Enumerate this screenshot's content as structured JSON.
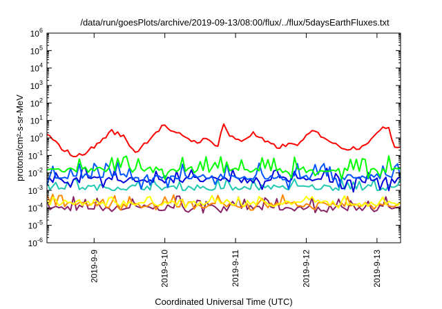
{
  "chart_data": {
    "type": "line",
    "title": "/data/run/goesPlots/archive/2019-09-13/08:00/flux/../flux/5daysEarthFluxes.txt",
    "xlabel": "Coordinated Universal Time (UTC)",
    "ylabel": "protons/cm²-s-sr-MeV",
    "yscale": "log",
    "ylim": [
      1e-06,
      1000000.0
    ],
    "y_ticks": [
      {
        "value": 1e-06,
        "base": "10",
        "exp": "-6"
      },
      {
        "value": 1e-05,
        "base": "10",
        "exp": "-5"
      },
      {
        "value": 0.0001,
        "base": "10",
        "exp": "-4"
      },
      {
        "value": 0.001,
        "base": "10",
        "exp": "-3"
      },
      {
        "value": 0.01,
        "base": "10",
        "exp": "-2"
      },
      {
        "value": 0.1,
        "base": "10",
        "exp": "-1"
      },
      {
        "value": 1,
        "base": "10",
        "exp": "0"
      },
      {
        "value": 10,
        "base": "10",
        "exp": "1"
      },
      {
        "value": 100,
        "base": "10",
        "exp": "2"
      },
      {
        "value": 1000,
        "base": "10",
        "exp": "3"
      },
      {
        "value": 10000,
        "base": "10",
        "exp": "4"
      },
      {
        "value": 100000,
        "base": "10",
        "exp": "5"
      },
      {
        "value": 1000000,
        "base": "10",
        "exp": "6"
      }
    ],
    "xlim": [
      "2019-09-08T08:00",
      "2019-09-13T08:00"
    ],
    "x_ticks": [
      {
        "value": "2019-09-09T00:00",
        "label": "2019-9-9"
      },
      {
        "value": "2019-09-10T00:00",
        "label": "2019-9-10"
      },
      {
        "value": "2019-09-11T00:00",
        "label": "2019-9-11"
      },
      {
        "value": "2019-09-12T00:00",
        "label": "2019-9-12"
      },
      {
        "value": "2019-09-13T00:00",
        "label": "2019-9-13"
      }
    ],
    "grid": false,
    "legend": "none",
    "sampling": {
      "start": "2019-09-08T08:00",
      "end": "2019-09-13T08:00",
      "step_hours": 1
    },
    "series": [
      {
        "color": "#ff0000",
        "approx_range": [
          0.06,
          10
        ],
        "points": [
          [
            "2019-09-08T08:00",
            1.8
          ],
          [
            "2019-09-08T10:00",
            0.7
          ],
          [
            "2019-09-08T14:00",
            0.2
          ],
          [
            "2019-09-08T18:00",
            0.08
          ],
          [
            "2019-09-09T00:00",
            0.3
          ],
          [
            "2019-09-09T06:00",
            2.5
          ],
          [
            "2019-09-09T10:00",
            1.2
          ],
          [
            "2019-09-09T14:00",
            0.15
          ],
          [
            "2019-09-09T16:00",
            0.3
          ],
          [
            "2019-09-09T20:00",
            1.5
          ],
          [
            "2019-09-10T00:00",
            6
          ],
          [
            "2019-09-10T02:00",
            2
          ],
          [
            "2019-09-10T06:00",
            1.5
          ],
          [
            "2019-09-10T10:00",
            0.6
          ],
          [
            "2019-09-10T14:00",
            0.8
          ],
          [
            "2019-09-10T18:00",
            0.4
          ],
          [
            "2019-09-10T20:00",
            7
          ],
          [
            "2019-09-10T22:00",
            1.2
          ],
          [
            "2019-09-11T02:00",
            0.7
          ],
          [
            "2019-09-11T06:00",
            1.8
          ],
          [
            "2019-09-11T10:00",
            0.6
          ],
          [
            "2019-09-11T14:00",
            0.3
          ],
          [
            "2019-09-11T18:00",
            0.4
          ],
          [
            "2019-09-11T22:00",
            0.5
          ],
          [
            "2019-09-12T02:00",
            2.5
          ],
          [
            "2019-09-12T06:00",
            1.2
          ],
          [
            "2019-09-12T10:00",
            0.4
          ],
          [
            "2019-09-12T14:00",
            0.25
          ],
          [
            "2019-09-12T18:00",
            0.3
          ],
          [
            "2019-09-12T22:00",
            0.8
          ],
          [
            "2019-09-13T00:00",
            1.5
          ],
          [
            "2019-09-13T02:00",
            5
          ],
          [
            "2019-09-13T04:00",
            4
          ],
          [
            "2019-09-13T06:00",
            0.3
          ],
          [
            "2019-09-13T08:00",
            0.4
          ]
        ]
      },
      {
        "color": "#00ff00",
        "approx_range": [
          0.004,
          0.1
        ],
        "typical": 0.015
      },
      {
        "color": "#0055ff",
        "approx_range": [
          0.001,
          0.04
        ],
        "typical": 0.006
      },
      {
        "color": "#0000dd",
        "approx_range": [
          0.0008,
          0.02
        ],
        "typical": 0.004
      },
      {
        "color": "#20c8b0",
        "approx_range": [
          0.001,
          0.005
        ],
        "typical": 0.0015
      },
      {
        "color": "#ffff00",
        "approx_range": [
          0.0001,
          0.0005
        ],
        "typical": 0.0002
      },
      {
        "color": "#ff8800",
        "approx_range": [
          7e-05,
          0.0006
        ],
        "typical": 0.00015
      },
      {
        "color": "#882266",
        "approx_range": [
          5e-05,
          0.0005
        ],
        "typical": 0.0001
      }
    ]
  }
}
